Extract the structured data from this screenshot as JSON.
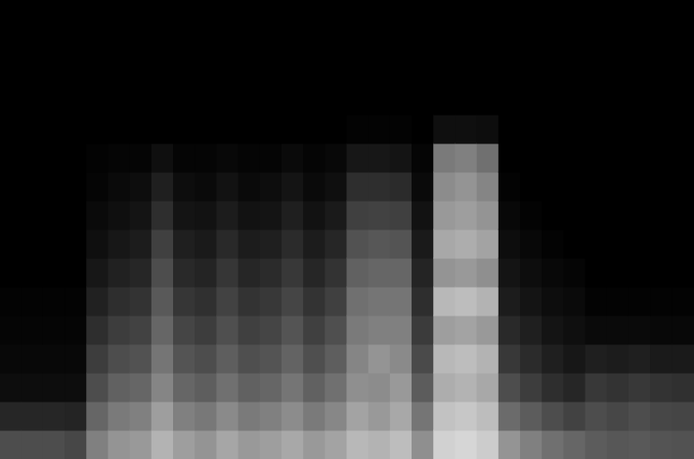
{
  "chart_data": {
    "type": "heatmap",
    "tick_labels": false,
    "grid": false,
    "color": "#ffffff",
    "xlim": [
      0,
      32
    ],
    "ylim": [
      0,
      16
    ],
    "zlim": [
      0,
      100
    ],
    "z": [
      [
        30,
        15,
        5,
        3,
        2,
        1,
        0,
        0,
        0,
        0,
        0,
        0,
        0,
        0,
        0,
        0
      ],
      [
        30,
        15,
        5,
        3,
        2,
        1,
        0,
        0,
        0,
        0,
        0,
        0,
        0,
        0,
        0,
        0
      ],
      [
        30,
        15,
        5,
        3,
        2,
        1,
        0,
        0,
        0,
        0,
        0,
        0,
        0,
        0,
        0,
        0
      ],
      [
        28,
        14,
        5,
        3,
        2,
        1,
        0,
        0,
        0,
        0,
        0,
        0,
        0,
        0,
        0,
        0
      ],
      [
        50,
        40,
        30,
        24,
        18,
        13,
        9,
        6,
        4,
        2,
        1,
        0,
        0,
        0,
        0,
        0
      ],
      [
        58,
        48,
        38,
        30,
        24,
        18,
        13,
        9,
        6,
        4,
        2,
        0,
        0,
        0,
        0,
        0
      ],
      [
        60,
        50,
        40,
        32,
        26,
        20,
        15,
        11,
        8,
        5,
        2,
        0,
        0,
        0,
        0,
        0
      ],
      [
        70,
        62,
        52,
        46,
        40,
        35,
        30,
        25,
        18,
        12,
        6,
        0,
        0,
        0,
        0,
        0
      ],
      [
        62,
        50,
        40,
        33,
        27,
        21,
        16,
        12,
        8,
        5,
        2,
        0,
        0,
        0,
        0,
        0
      ],
      [
        58,
        47,
        37,
        30,
        24,
        19,
        14,
        10,
        7,
        4,
        2,
        0,
        0,
        0,
        0,
        0
      ],
      [
        65,
        54,
        44,
        37,
        31,
        26,
        21,
        16,
        11,
        7,
        3,
        0,
        0,
        0,
        0,
        0
      ],
      [
        60,
        48,
        38,
        31,
        25,
        20,
        15,
        11,
        7,
        4,
        2,
        0,
        0,
        0,
        0,
        0
      ],
      [
        62,
        50,
        40,
        33,
        27,
        22,
        17,
        12,
        8,
        5,
        2,
        0,
        0,
        0,
        0,
        0
      ],
      [
        66,
        55,
        46,
        39,
        33,
        27,
        22,
        17,
        12,
        8,
        4,
        0,
        0,
        0,
        0,
        0
      ],
      [
        60,
        48,
        38,
        31,
        25,
        20,
        15,
        11,
        7,
        4,
        2,
        0,
        0,
        0,
        0,
        0
      ],
      [
        64,
        53,
        44,
        37,
        31,
        25,
        20,
        15,
        10,
        6,
        3,
        0,
        0,
        0,
        0,
        0
      ],
      [
        72,
        64,
        56,
        52,
        48,
        44,
        38,
        32,
        25,
        18,
        9,
        1,
        0,
        0,
        0,
        0
      ],
      [
        70,
        60,
        55,
        58,
        50,
        46,
        40,
        34,
        26,
        18,
        9,
        1,
        0,
        0,
        0,
        0
      ],
      [
        74,
        66,
        60,
        54,
        50,
        46,
        40,
        33,
        25,
        17,
        8,
        1,
        0,
        0,
        0,
        0
      ],
      [
        56,
        46,
        36,
        29,
        23,
        18,
        14,
        10,
        7,
        4,
        2,
        0,
        0,
        0,
        0,
        0
      ],
      [
        82,
        76,
        68,
        72,
        62,
        72,
        58,
        66,
        60,
        55,
        48,
        6,
        0,
        0,
        0,
        0
      ],
      [
        84,
        78,
        70,
        74,
        64,
        74,
        60,
        68,
        62,
        58,
        50,
        6,
        0,
        0,
        0,
        0
      ],
      [
        80,
        74,
        66,
        70,
        60,
        70,
        56,
        64,
        58,
        52,
        44,
        5,
        0,
        0,
        0,
        0
      ],
      [
        58,
        42,
        30,
        22,
        16,
        11,
        8,
        5,
        3,
        1,
        0,
        0,
        0,
        0,
        0,
        0
      ],
      [
        50,
        36,
        24,
        17,
        12,
        8,
        5,
        3,
        1,
        0,
        0,
        0,
        0,
        0,
        0,
        0
      ],
      [
        44,
        30,
        18,
        12,
        8,
        5,
        3,
        1,
        0,
        0,
        0,
        0,
        0,
        0,
        0,
        0
      ],
      [
        40,
        26,
        15,
        9,
        6,
        4,
        2,
        0,
        0,
        0,
        0,
        0,
        0,
        0,
        0,
        0
      ],
      [
        36,
        30,
        22,
        12,
        4,
        1,
        0,
        0,
        0,
        0,
        0,
        0,
        0,
        0,
        0,
        0
      ],
      [
        34,
        28,
        20,
        11,
        4,
        1,
        0,
        0,
        0,
        0,
        0,
        0,
        0,
        0,
        0,
        0
      ],
      [
        35,
        30,
        22,
        12,
        4,
        1,
        0,
        0,
        0,
        0,
        0,
        0,
        0,
        0,
        0,
        0
      ],
      [
        33,
        28,
        20,
        10,
        3,
        1,
        0,
        0,
        0,
        0,
        0,
        0,
        0,
        0,
        0,
        0
      ],
      [
        32,
        27,
        19,
        10,
        3,
        1,
        0,
        0,
        0,
        0,
        0,
        0,
        0,
        0,
        0,
        0
      ]
    ]
  }
}
